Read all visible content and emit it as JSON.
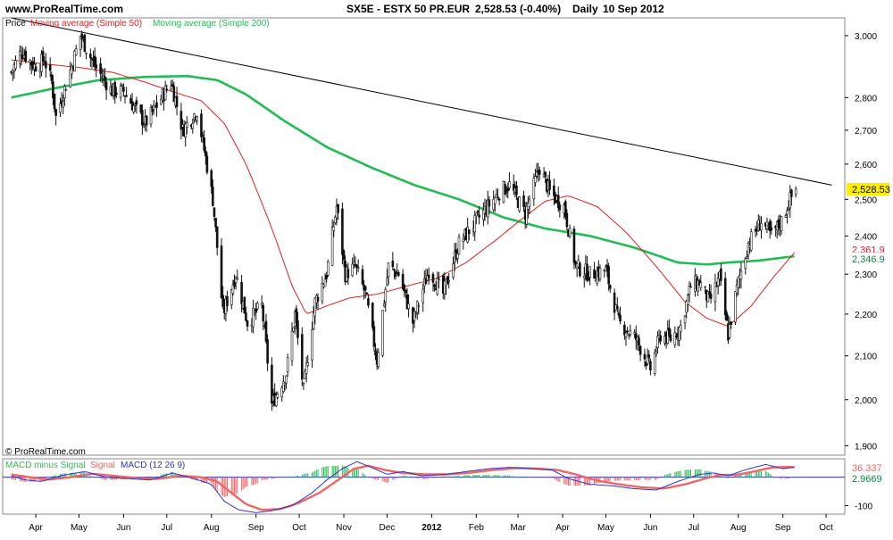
{
  "header": {
    "site": "www.ProRealTime.com",
    "instrument": "SX5E - ESTX 50 PR.EUR",
    "last": "2,528.53 (-0.40%)",
    "period": "Daily",
    "date": "10 Sep 2012"
  },
  "copyright": "© ProRealTime.com",
  "colors": {
    "candle": "#111111",
    "ma50": "#dd2222",
    "ma200": "#22bb55",
    "trendline": "#000000",
    "last_bg": "#ffee00",
    "macd": "#3333cc",
    "signal": "#ee6666",
    "histogram": "#33bb55",
    "zero_line": "#2233aa"
  },
  "chart_data": [
    {
      "type": "candlestick",
      "legend": {
        "price": "Price",
        "ma50": "Moving average (Simple 50)",
        "ma200": "Moving average (Simple 200)"
      },
      "x_labels": [
        "Apr",
        "May",
        "Jun",
        "Jul",
        "Aug",
        "Sep",
        "Oct",
        "Nov",
        "Dec",
        "2012",
        "Feb",
        "Mar",
        "Apr",
        "May",
        "Jun",
        "Jul",
        "Aug",
        "Sep",
        "Oct"
      ],
      "y_ticks": [
        1900,
        2000,
        2100,
        2200,
        2300,
        2400,
        2500,
        2600,
        2700,
        2800,
        3000
      ],
      "y_tick_labels": [
        "1,900",
        "2,000",
        "2,100",
        "2,200",
        "2,300",
        "2,400",
        "2,500",
        "2,600",
        "2,700",
        "2,800",
        "3,000"
      ],
      "ylim": [
        1880,
        3060
      ],
      "y_scale": "log",
      "close_anchors": [
        [
          "2011-03-15",
          2880
        ],
        [
          "2011-03-22",
          2950
        ],
        [
          "2011-03-31",
          2900
        ],
        [
          "2011-04-07",
          2920
        ],
        [
          "2011-04-12",
          2850
        ],
        [
          "2011-04-15",
          2740
        ],
        [
          "2011-04-26",
          2900
        ],
        [
          "2011-05-02",
          3000
        ],
        [
          "2011-05-12",
          2900
        ],
        [
          "2011-05-24",
          2820
        ],
        [
          "2011-06-01",
          2820
        ],
        [
          "2011-06-10",
          2760
        ],
        [
          "2011-06-16",
          2720
        ],
        [
          "2011-06-22",
          2760
        ],
        [
          "2011-07-04",
          2850
        ],
        [
          "2011-07-12",
          2700
        ],
        [
          "2011-07-22",
          2760
        ],
        [
          "2011-08-02",
          2500
        ],
        [
          "2011-08-09",
          2200
        ],
        [
          "2011-08-18",
          2300
        ],
        [
          "2011-08-26",
          2180
        ],
        [
          "2011-09-05",
          2220
        ],
        [
          "2011-09-12",
          1990
        ],
        [
          "2011-09-22",
          2060
        ],
        [
          "2011-09-28",
          2200
        ],
        [
          "2011-10-04",
          2020
        ],
        [
          "2011-10-12",
          2230
        ],
        [
          "2011-10-20",
          2300
        ],
        [
          "2011-10-27",
          2480
        ],
        [
          "2011-11-02",
          2300
        ],
        [
          "2011-11-09",
          2320
        ],
        [
          "2011-11-16",
          2250
        ],
        [
          "2011-11-24",
          2090
        ],
        [
          "2011-12-02",
          2320
        ],
        [
          "2011-12-09",
          2300
        ],
        [
          "2011-12-19",
          2180
        ],
        [
          "2011-12-30",
          2310
        ],
        [
          "2012-01-09",
          2250
        ],
        [
          "2012-01-20",
          2380
        ],
        [
          "2012-02-03",
          2450
        ],
        [
          "2012-02-17",
          2520
        ],
        [
          "2012-02-24",
          2540
        ],
        [
          "2012-03-06",
          2460
        ],
        [
          "2012-03-16",
          2590
        ],
        [
          "2012-03-23",
          2520
        ],
        [
          "2012-04-02",
          2480
        ],
        [
          "2012-04-10",
          2320
        ],
        [
          "2012-04-20",
          2300
        ],
        [
          "2012-05-01",
          2310
        ],
        [
          "2012-05-10",
          2180
        ],
        [
          "2012-05-22",
          2140
        ],
        [
          "2012-06-01",
          2070
        ],
        [
          "2012-06-08",
          2150
        ],
        [
          "2012-06-15",
          2140
        ],
        [
          "2012-06-22",
          2170
        ],
        [
          "2012-06-29",
          2270
        ],
        [
          "2012-07-05",
          2280
        ],
        [
          "2012-07-12",
          2230
        ],
        [
          "2012-07-19",
          2290
        ],
        [
          "2012-07-25",
          2150
        ],
        [
          "2012-08-01",
          2280
        ],
        [
          "2012-08-08",
          2380
        ],
        [
          "2012-08-17",
          2440
        ],
        [
          "2012-08-24",
          2400
        ],
        [
          "2012-08-31",
          2440
        ],
        [
          "2012-09-06",
          2500
        ],
        [
          "2012-09-10",
          2528.53
        ]
      ],
      "ma50_anchors": [
        [
          "2011-03-15",
          2920
        ],
        [
          "2011-04-01",
          2910
        ],
        [
          "2011-05-02",
          2895
        ],
        [
          "2011-05-24",
          2880
        ],
        [
          "2011-06-15",
          2850
        ],
        [
          "2011-07-04",
          2820
        ],
        [
          "2011-07-25",
          2790
        ],
        [
          "2011-08-10",
          2720
        ],
        [
          "2011-08-25",
          2600
        ],
        [
          "2011-09-12",
          2420
        ],
        [
          "2011-09-26",
          2270
        ],
        [
          "2011-10-06",
          2200
        ],
        [
          "2011-10-20",
          2220
        ],
        [
          "2011-11-05",
          2240
        ],
        [
          "2011-11-25",
          2250
        ],
        [
          "2011-12-15",
          2270
        ],
        [
          "2012-01-05",
          2290
        ],
        [
          "2012-01-25",
          2330
        ],
        [
          "2012-02-15",
          2390
        ],
        [
          "2012-03-05",
          2450
        ],
        [
          "2012-03-20",
          2495
        ],
        [
          "2012-04-05",
          2510
        ],
        [
          "2012-04-25",
          2480
        ],
        [
          "2012-05-15",
          2410
        ],
        [
          "2012-06-05",
          2320
        ],
        [
          "2012-06-25",
          2230
        ],
        [
          "2012-07-10",
          2190
        ],
        [
          "2012-07-25",
          2170
        ],
        [
          "2012-08-10",
          2220
        ],
        [
          "2012-08-25",
          2290
        ],
        [
          "2012-09-10",
          2360
        ]
      ],
      "ma200_anchors": [
        [
          "2011-03-15",
          2800
        ],
        [
          "2011-04-15",
          2830
        ],
        [
          "2011-05-15",
          2855
        ],
        [
          "2011-06-15",
          2865
        ],
        [
          "2011-07-15",
          2868
        ],
        [
          "2011-08-05",
          2855
        ],
        [
          "2011-08-25",
          2810
        ],
        [
          "2011-09-20",
          2730
        ],
        [
          "2011-10-20",
          2650
        ],
        [
          "2011-11-20",
          2590
        ],
        [
          "2011-12-20",
          2540
        ],
        [
          "2012-01-20",
          2500
        ],
        [
          "2012-02-20",
          2450
        ],
        [
          "2012-03-20",
          2420
        ],
        [
          "2012-04-20",
          2400
        ],
        [
          "2012-05-20",
          2370
        ],
        [
          "2012-06-20",
          2330
        ],
        [
          "2012-07-10",
          2325
        ],
        [
          "2012-07-25",
          2330
        ],
        [
          "2012-08-15",
          2335
        ],
        [
          "2012-09-10",
          2346.9
        ]
      ],
      "trendline": {
        "start": [
          "2011-03-15",
          3060
        ],
        "end": [
          "2012-10-05",
          2540
        ]
      },
      "last_value_label": "2,528.53",
      "ma200_value_label": "2,346.9",
      "ma50_value_label": "2,361.9"
    },
    {
      "type": "line",
      "legend": {
        "histogram": "MACD minus Signal",
        "signal": "Signal",
        "macd": "MACD (12 26 9)"
      },
      "y_ticks": [
        -100
      ],
      "y_tick_labels": [
        "-100"
      ],
      "ylim": [
        -130,
        65
      ],
      "zero_value": 0,
      "macd_anchors": [
        [
          "2011-03-15",
          5
        ],
        [
          "2011-03-25",
          -10
        ],
        [
          "2011-04-05",
          -15
        ],
        [
          "2011-04-18",
          5
        ],
        [
          "2011-05-05",
          20
        ],
        [
          "2011-05-20",
          0
        ],
        [
          "2011-06-05",
          -5
        ],
        [
          "2011-06-20",
          -10
        ],
        [
          "2011-07-05",
          15
        ],
        [
          "2011-07-20",
          -5
        ],
        [
          "2011-08-01",
          -25
        ],
        [
          "2011-08-10",
          -85
        ],
        [
          "2011-08-20",
          -115
        ],
        [
          "2011-09-01",
          -125
        ],
        [
          "2011-09-12",
          -118
        ],
        [
          "2011-09-26",
          -100
        ],
        [
          "2011-10-10",
          -55
        ],
        [
          "2011-10-20",
          -10
        ],
        [
          "2011-10-31",
          30
        ],
        [
          "2011-11-10",
          55
        ],
        [
          "2011-11-20",
          35
        ],
        [
          "2011-12-01",
          10
        ],
        [
          "2011-12-12",
          20
        ],
        [
          "2011-12-25",
          5
        ],
        [
          "2012-01-10",
          10
        ],
        [
          "2012-01-25",
          20
        ],
        [
          "2012-02-10",
          30
        ],
        [
          "2012-02-25",
          35
        ],
        [
          "2012-03-10",
          30
        ],
        [
          "2012-03-25",
          25
        ],
        [
          "2012-04-05",
          -5
        ],
        [
          "2012-04-20",
          -25
        ],
        [
          "2012-05-05",
          -30
        ],
        [
          "2012-05-20",
          -40
        ],
        [
          "2012-06-05",
          -45
        ],
        [
          "2012-06-20",
          -15
        ],
        [
          "2012-07-05",
          10
        ],
        [
          "2012-07-15",
          15
        ],
        [
          "2012-07-25",
          5
        ],
        [
          "2012-08-05",
          25
        ],
        [
          "2012-08-20",
          45
        ],
        [
          "2012-09-01",
          30
        ],
        [
          "2012-09-10",
          36.33
        ]
      ],
      "signal_anchors": [
        [
          "2011-03-15",
          10
        ],
        [
          "2011-03-28",
          0
        ],
        [
          "2011-04-10",
          -8
        ],
        [
          "2011-04-25",
          0
        ],
        [
          "2011-05-10",
          12
        ],
        [
          "2011-05-25",
          5
        ],
        [
          "2011-06-10",
          -3
        ],
        [
          "2011-06-25",
          -6
        ],
        [
          "2011-07-10",
          5
        ],
        [
          "2011-07-25",
          0
        ],
        [
          "2011-08-05",
          -15
        ],
        [
          "2011-08-15",
          -55
        ],
        [
          "2011-08-25",
          -95
        ],
        [
          "2011-09-05",
          -115
        ],
        [
          "2011-09-18",
          -112
        ],
        [
          "2011-09-30",
          -92
        ],
        [
          "2011-10-15",
          -55
        ],
        [
          "2011-10-28",
          -10
        ],
        [
          "2011-11-08",
          30
        ],
        [
          "2011-11-18",
          40
        ],
        [
          "2011-11-30",
          25
        ],
        [
          "2011-12-12",
          15
        ],
        [
          "2011-12-28",
          10
        ],
        [
          "2012-01-12",
          10
        ],
        [
          "2012-01-28",
          16
        ],
        [
          "2012-02-12",
          25
        ],
        [
          "2012-02-28",
          32
        ],
        [
          "2012-03-12",
          31
        ],
        [
          "2012-03-28",
          26
        ],
        [
          "2012-04-10",
          10
        ],
        [
          "2012-04-25",
          -12
        ],
        [
          "2012-05-10",
          -25
        ],
        [
          "2012-05-25",
          -35
        ],
        [
          "2012-06-10",
          -40
        ],
        [
          "2012-06-25",
          -25
        ],
        [
          "2012-07-10",
          -3
        ],
        [
          "2012-07-20",
          8
        ],
        [
          "2012-07-30",
          8
        ],
        [
          "2012-08-10",
          18
        ],
        [
          "2012-08-25",
          35
        ],
        [
          "2012-09-05",
          36
        ],
        [
          "2012-09-10",
          35
        ]
      ],
      "macd_value_label": "36.337",
      "hist_value_label": "2.9669"
    }
  ]
}
